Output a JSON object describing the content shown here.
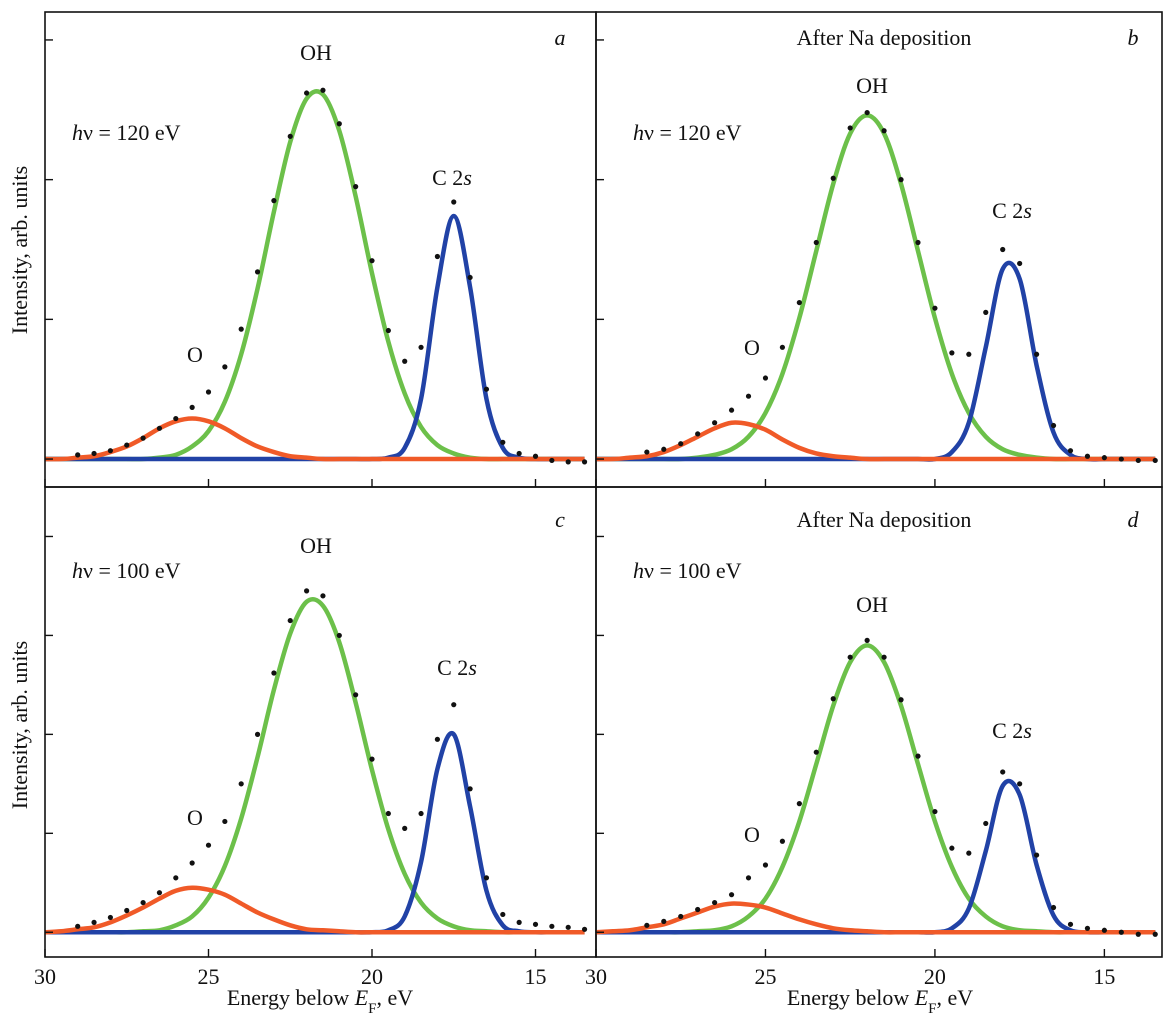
{
  "chart_data": [
    {
      "type": "line",
      "panel_label": "a",
      "ylabel": "Intensity, arb. units",
      "photon_energy": {
        "symbol": "h",
        "text": "ν = 120 eV"
      },
      "annotations": [
        {
          "text": "OH"
        },
        {
          "text": "O"
        },
        {
          "text": "C 2",
          "italic": "s"
        }
      ],
      "x": [
        30,
        29.5,
        29,
        28.5,
        28,
        27.5,
        27,
        26.5,
        26,
        25.5,
        25,
        24.5,
        24,
        23.5,
        23,
        22.5,
        22,
        21.5,
        21,
        20.5,
        20,
        19.5,
        19,
        18.5,
        18,
        17.5,
        17,
        16.5,
        16,
        15.5,
        15,
        14.5,
        14,
        13.5
      ],
      "xlim": [
        30,
        13.15
      ],
      "xticks": [
        30,
        25,
        20,
        15
      ],
      "ylim": [
        -0.2,
        3.2
      ],
      "yticks": [
        0,
        1,
        2,
        3
      ],
      "series": [
        {
          "style": "dots",
          "color": "#111111",
          "values": [
            null,
            null,
            0.03,
            0.04,
            0.06,
            0.1,
            0.15,
            0.22,
            0.29,
            0.37,
            0.48,
            0.66,
            0.93,
            1.34,
            1.85,
            2.31,
            2.62,
            2.64,
            2.4,
            1.95,
            1.42,
            0.92,
            0.7,
            0.8,
            1.45,
            1.84,
            1.3,
            0.5,
            0.12,
            0.04,
            0.02,
            -0.01,
            -0.02,
            -0.02
          ]
        },
        {
          "style": "line",
          "color": "#6cc04a",
          "values": [
            0,
            0,
            0,
            0,
            0,
            0,
            0,
            0.01,
            0.03,
            0.09,
            0.2,
            0.41,
            0.75,
            1.22,
            1.77,
            2.27,
            2.58,
            2.61,
            2.35,
            1.88,
            1.33,
            0.84,
            0.47,
            0.23,
            0.1,
            0.04,
            0.01,
            0,
            0,
            0,
            0,
            0,
            0,
            0
          ]
        },
        {
          "style": "line",
          "color": "#2142a6",
          "values": [
            0,
            0,
            0,
            0,
            0,
            0,
            0,
            0,
            0,
            0,
            0,
            0,
            0,
            0,
            0,
            0,
            0,
            0,
            0,
            0,
            0,
            0.01,
            0.08,
            0.43,
            1.23,
            1.74,
            1.23,
            0.43,
            0.08,
            0.01,
            0,
            0,
            0,
            0
          ]
        },
        {
          "style": "line",
          "color": "#f05a28",
          "values": [
            0,
            0,
            0.01,
            0.02,
            0.05,
            0.09,
            0.15,
            0.22,
            0.27,
            0.29,
            0.27,
            0.22,
            0.15,
            0.09,
            0.05,
            0.02,
            0.01,
            0,
            0,
            0,
            0,
            0,
            0,
            0,
            0,
            0,
            0,
            0,
            0,
            0,
            0,
            0,
            0,
            0
          ]
        }
      ]
    },
    {
      "type": "line",
      "panel_label": "b",
      "subtitle": "After Na deposition",
      "photon_energy": {
        "symbol": "h",
        "text": "ν = 120 eV"
      },
      "annotations": [
        {
          "text": "OH"
        },
        {
          "text": "O"
        },
        {
          "text": "C 2",
          "italic": "s"
        }
      ],
      "x": [
        30,
        29.5,
        29,
        28.5,
        28,
        27.5,
        27,
        26.5,
        26,
        25.5,
        25,
        24.5,
        24,
        23.5,
        23,
        22.5,
        22,
        21.5,
        21,
        20.5,
        20,
        19.5,
        19,
        18.5,
        18,
        17.5,
        17,
        16.5,
        16,
        15.5,
        15,
        14.5,
        14,
        13.5
      ],
      "xlim": [
        30,
        13.3
      ],
      "xticks": [
        30,
        25,
        20,
        15
      ],
      "ylim": [
        -0.2,
        3.2
      ],
      "yticks": [
        0,
        1,
        2,
        3
      ],
      "series": [
        {
          "style": "dots",
          "color": "#111111",
          "values": [
            null,
            null,
            null,
            0.05,
            0.07,
            0.11,
            0.18,
            0.26,
            0.35,
            0.45,
            0.58,
            0.8,
            1.12,
            1.55,
            2.01,
            2.37,
            2.48,
            2.35,
            2.0,
            1.55,
            1.08,
            0.76,
            0.75,
            1.05,
            1.5,
            1.4,
            0.75,
            0.24,
            0.06,
            0.02,
            0.01,
            0.0,
            -0.01,
            -0.01
          ]
        },
        {
          "style": "line",
          "color": "#6cc04a",
          "values": [
            0,
            0,
            0,
            0,
            0,
            0,
            0.01,
            0.03,
            0.07,
            0.16,
            0.33,
            0.61,
            1.01,
            1.49,
            1.97,
            2.33,
            2.46,
            2.33,
            1.97,
            1.49,
            1.01,
            0.61,
            0.33,
            0.16,
            0.07,
            0.03,
            0.01,
            0,
            0,
            0,
            0,
            0,
            0,
            0
          ]
        },
        {
          "style": "line",
          "color": "#2142a6",
          "values": [
            0,
            0,
            0,
            0,
            0,
            0,
            0,
            0,
            0,
            0,
            0,
            0,
            0,
            0,
            0,
            0,
            0,
            0,
            0,
            0,
            0,
            0.05,
            0.26,
            0.8,
            1.36,
            1.29,
            0.67,
            0.19,
            0.03,
            0,
            0,
            0,
            0,
            0
          ]
        },
        {
          "style": "line",
          "color": "#f05a28",
          "values": [
            0,
            0,
            0.01,
            0.02,
            0.05,
            0.1,
            0.16,
            0.22,
            0.26,
            0.25,
            0.21,
            0.14,
            0.08,
            0.04,
            0.02,
            0.01,
            0,
            0,
            0,
            0,
            0,
            0,
            0,
            0,
            0,
            0,
            0,
            0,
            0,
            0,
            0,
            0,
            0,
            0
          ]
        }
      ]
    },
    {
      "type": "line",
      "panel_label": "c",
      "ylabel": "Intensity, arb. units",
      "xlabel": {
        "text": "Energy below ",
        "italic": "E",
        "subscript": "F",
        "suffix": ", eV"
      },
      "photon_energy": {
        "symbol": "h",
        "text": "ν = 100 eV"
      },
      "annotations": [
        {
          "text": "OH"
        },
        {
          "text": "O"
        },
        {
          "text": "C 2",
          "italic": "s"
        }
      ],
      "x": [
        30,
        29.5,
        29,
        28.5,
        28,
        27.5,
        27,
        26.5,
        26,
        25.5,
        25,
        24.5,
        24,
        23.5,
        23,
        22.5,
        22,
        21.5,
        21,
        20.5,
        20,
        19.5,
        19,
        18.5,
        18,
        17.5,
        17,
        16.5,
        16,
        15.5,
        15,
        14.5,
        14,
        13.5
      ],
      "xlim": [
        30,
        13.15
      ],
      "xticks": [
        30,
        25,
        20,
        15
      ],
      "ylim": [
        -0.25,
        4.5
      ],
      "yticks": [
        0,
        1,
        2,
        3,
        4
      ],
      "series": [
        {
          "style": "dots",
          "color": "#111111",
          "values": [
            null,
            null,
            0.06,
            0.1,
            0.15,
            0.22,
            0.3,
            0.4,
            0.55,
            0.7,
            0.88,
            1.12,
            1.5,
            2.0,
            2.62,
            3.15,
            3.45,
            3.4,
            3.0,
            2.4,
            1.75,
            1.2,
            1.05,
            1.2,
            1.95,
            2.3,
            1.45,
            0.55,
            0.18,
            0.1,
            0.08,
            0.06,
            0.05,
            0.03
          ]
        },
        {
          "style": "line",
          "color": "#6cc04a",
          "values": [
            0,
            0,
            0,
            0,
            0,
            0,
            0.01,
            0.02,
            0.07,
            0.16,
            0.35,
            0.67,
            1.15,
            1.77,
            2.45,
            3.02,
            3.34,
            3.3,
            2.93,
            2.32,
            1.64,
            1.04,
            0.59,
            0.3,
            0.14,
            0.06,
            0.02,
            0.01,
            0,
            0,
            0,
            0,
            0,
            0
          ]
        },
        {
          "style": "line",
          "color": "#2142a6",
          "values": [
            0,
            0,
            0,
            0,
            0,
            0,
            0,
            0,
            0,
            0,
            0,
            0,
            0,
            0,
            0,
            0,
            0,
            0,
            0,
            0,
            0,
            0.02,
            0.16,
            0.71,
            1.65,
            2.0,
            1.27,
            0.42,
            0.07,
            0.01,
            0,
            0,
            0,
            0
          ]
        },
        {
          "style": "line",
          "color": "#f05a28",
          "values": [
            0,
            0.01,
            0.03,
            0.05,
            0.1,
            0.17,
            0.25,
            0.34,
            0.42,
            0.45,
            0.43,
            0.38,
            0.29,
            0.2,
            0.13,
            0.07,
            0.03,
            0.02,
            0.01,
            0,
            0,
            0,
            0,
            0,
            0,
            0,
            0,
            0,
            0,
            0,
            0,
            0,
            0,
            0
          ]
        }
      ]
    },
    {
      "type": "line",
      "panel_label": "d",
      "subtitle": "After Na deposition",
      "xlabel": {
        "text": "Energy below ",
        "italic": "E",
        "subscript": "F",
        "suffix": ", eV"
      },
      "photon_energy": {
        "symbol": "h",
        "text": "ν = 100 eV"
      },
      "annotations": [
        {
          "text": "OH"
        },
        {
          "text": "O"
        },
        {
          "text": "C 2",
          "italic": "s"
        }
      ],
      "x": [
        30,
        29.5,
        29,
        28.5,
        28,
        27.5,
        27,
        26.5,
        26,
        25.5,
        25,
        24.5,
        24,
        23.5,
        23,
        22.5,
        22,
        21.5,
        21,
        20.5,
        20,
        19.5,
        19,
        18.5,
        18,
        17.5,
        17,
        16.5,
        16,
        15.5,
        15,
        14.5,
        14,
        13.5
      ],
      "xlim": [
        30,
        13.3
      ],
      "xticks": [
        30,
        25,
        20,
        15
      ],
      "ylim": [
        -0.25,
        4.5
      ],
      "yticks": [
        0,
        1,
        2,
        3,
        4
      ],
      "series": [
        {
          "style": "dots",
          "color": "#111111",
          "values": [
            null,
            null,
            null,
            0.07,
            0.11,
            0.16,
            0.23,
            0.3,
            0.38,
            0.55,
            0.68,
            0.92,
            1.3,
            1.82,
            2.36,
            2.78,
            2.95,
            2.78,
            2.35,
            1.78,
            1.22,
            0.85,
            0.8,
            1.1,
            1.62,
            1.5,
            0.78,
            0.25,
            0.08,
            0.04,
            0.02,
            0.0,
            -0.02,
            -0.02
          ]
        },
        {
          "style": "line",
          "color": "#6cc04a",
          "values": [
            0,
            0,
            0,
            0,
            0,
            0,
            0.01,
            0.02,
            0.06,
            0.16,
            0.34,
            0.66,
            1.12,
            1.7,
            2.29,
            2.73,
            2.9,
            2.73,
            2.29,
            1.7,
            1.12,
            0.66,
            0.34,
            0.16,
            0.06,
            0.02,
            0.01,
            0,
            0,
            0,
            0,
            0,
            0,
            0
          ]
        },
        {
          "style": "line",
          "color": "#2142a6",
          "values": [
            0,
            0,
            0,
            0,
            0,
            0,
            0,
            0,
            0,
            0,
            0,
            0,
            0,
            0,
            0,
            0,
            0,
            0,
            0,
            0,
            0,
            0.04,
            0.24,
            0.82,
            1.48,
            1.39,
            0.68,
            0.17,
            0.02,
            0,
            0,
            0,
            0,
            0
          ]
        },
        {
          "style": "line",
          "color": "#f05a28",
          "values": [
            0,
            0.01,
            0.02,
            0.05,
            0.08,
            0.14,
            0.2,
            0.26,
            0.29,
            0.28,
            0.25,
            0.19,
            0.13,
            0.08,
            0.04,
            0.02,
            0.01,
            0,
            0,
            0,
            0,
            0,
            0,
            0,
            0,
            0,
            0,
            0,
            0,
            0,
            0,
            0,
            0,
            0
          ]
        }
      ]
    }
  ]
}
